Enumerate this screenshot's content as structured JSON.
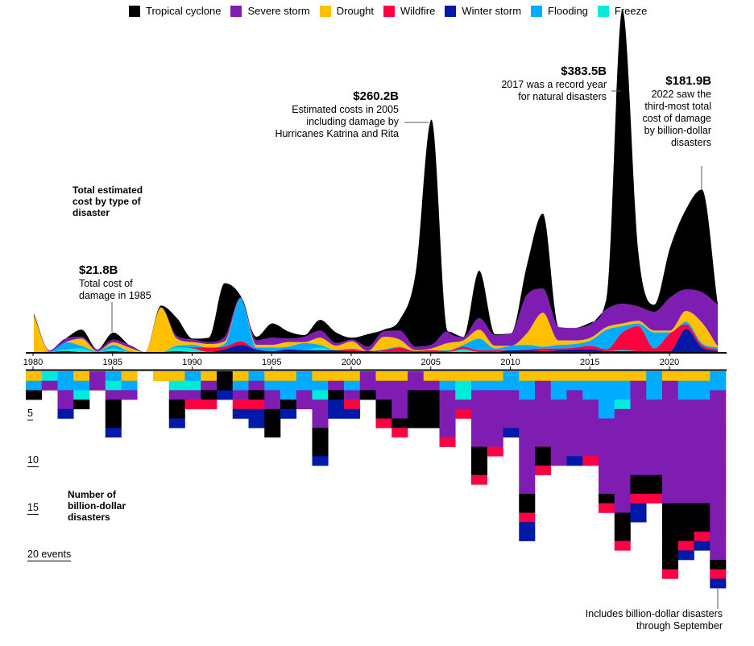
{
  "legend": [
    {
      "key": "tropical",
      "label": "Tropical cyclone",
      "color": "#000000"
    },
    {
      "key": "severe",
      "label": "Severe storm",
      "color": "#7F1CB2"
    },
    {
      "key": "drought",
      "label": "Drought",
      "color": "#FFC000"
    },
    {
      "key": "wildfire",
      "label": "Wildfire",
      "color": "#FF0040"
    },
    {
      "key": "winter",
      "label": "Winter storm",
      "color": "#0019A8"
    },
    {
      "key": "flooding",
      "label": "Flooding",
      "color": "#00ACFF"
    },
    {
      "key": "freeze",
      "label": "Freeze",
      "color": "#00EBDC"
    }
  ],
  "annotations": {
    "cost_label": "Total estimated cost by type of disaster",
    "count_label": "Number of billion-dollar disasters",
    "y1985_value": "$21.8B",
    "y1985_text": "Total cost of damage in 1985",
    "y2005_value": "$260.2B",
    "y2005_text": "Estimated costs in 2005 including damage by Hurricanes Katrina and Rita",
    "y2017_value": "$383.5B",
    "y2017_text": "2017 was a record year for natural disasters",
    "y2022_value": "$181.9B",
    "y2022_text": "2022 saw the third-most total cost of damage by billion-dollar disasters",
    "footnote": "Includes billion-dollar disasters through September"
  },
  "chart_data": [
    {
      "type": "area",
      "subtype": "streamgraph-stacked",
      "title": "Total estimated cost by type of disaster",
      "unit": "billion USD",
      "x": [
        1980,
        1981,
        1982,
        1983,
        1984,
        1985,
        1986,
        1987,
        1988,
        1989,
        1990,
        1991,
        1992,
        1993,
        1994,
        1995,
        1996,
        1997,
        1998,
        1999,
        2000,
        2001,
        2002,
        2003,
        2004,
        2005,
        2006,
        2007,
        2008,
        2009,
        2010,
        2011,
        2012,
        2013,
        2014,
        2015,
        2016,
        2017,
        2018,
        2019,
        2020,
        2021,
        2022,
        2023
      ],
      "x_ticks": [
        "1980",
        "1985",
        "1990",
        "1995",
        "2000",
        "2005",
        "2010",
        "2015",
        "2020"
      ],
      "stack_order_bottom_to_top": [
        "winter",
        "freeze",
        "wildfire",
        "flooding",
        "drought",
        "severe",
        "tropical"
      ],
      "series": {
        "tropical": [
          2,
          0,
          0,
          8,
          0,
          8,
          0,
          0,
          2,
          20,
          1,
          5,
          60,
          2,
          4,
          16,
          8,
          2,
          12,
          12,
          2,
          14,
          2,
          12,
          82,
          252.2,
          1,
          0,
          53,
          1,
          0,
          33,
          84,
          0,
          0,
          2,
          12,
          329.5,
          61,
          8,
          56,
          90,
          114.9,
          0
        ],
        "severe": [
          0,
          1,
          4,
          2,
          2,
          3,
          3,
          0,
          0,
          3,
          3,
          2,
          5,
          1,
          5,
          8,
          4,
          6,
          8,
          3,
          2,
          5,
          6,
          10,
          4,
          4,
          13,
          4,
          13,
          12,
          14,
          43,
          27,
          15,
          14,
          15,
          20,
          22,
          16,
          21,
          37,
          24,
          34,
          47
        ],
        "drought": [
          41,
          0,
          0,
          8,
          0,
          3,
          4,
          0,
          50,
          8,
          3,
          4,
          3,
          0,
          3,
          3,
          5,
          1,
          8,
          5,
          8,
          0,
          14,
          8,
          1,
          2,
          8,
          5,
          10,
          3,
          0,
          13,
          38,
          5,
          4,
          3,
          3,
          3,
          3,
          2,
          2,
          12,
          23,
          1
        ],
        "wildfire": [
          0,
          0,
          0,
          0,
          0,
          0,
          0,
          0,
          0,
          0,
          1,
          5,
          3,
          4,
          0,
          0,
          0,
          0,
          0,
          0,
          2,
          0,
          2,
          5,
          1,
          2,
          1,
          3,
          2,
          2,
          0,
          1,
          3,
          2,
          2,
          4,
          2,
          20,
          28,
          3,
          20,
          5,
          3,
          2
        ],
        "winter": [
          0,
          0,
          1,
          0,
          0,
          1,
          0,
          0,
          0,
          1,
          0,
          0,
          3,
          8,
          3,
          1,
          3,
          2,
          2,
          2,
          1,
          1,
          0,
          0,
          0,
          0,
          0,
          0,
          0,
          0,
          2,
          2,
          1,
          2,
          3,
          3,
          1,
          1,
          1,
          1,
          1,
          26,
          5,
          1
        ],
        "flooding": [
          0,
          1,
          8,
          3,
          1,
          4,
          1,
          0,
          0,
          2,
          3,
          0,
          3,
          48,
          2,
          4,
          3,
          8,
          3,
          0,
          1,
          0,
          1,
          1,
          0,
          0,
          1,
          2,
          13,
          2,
          5,
          5,
          2,
          4,
          4,
          6,
          22,
          7,
          3,
          18,
          1,
          3,
          2,
          2
        ],
        "freeze": [
          0,
          0,
          2,
          4,
          0,
          2.8,
          0,
          0,
          0,
          4,
          4,
          0,
          0,
          0,
          0,
          0,
          0,
          0,
          3,
          0,
          0,
          0,
          0,
          0,
          0,
          0,
          0,
          3,
          0,
          0,
          0,
          0,
          0,
          0,
          0,
          0,
          0,
          1,
          0,
          0,
          0,
          0,
          0,
          0
        ]
      },
      "labeled_totals": {
        "1985": 21.8,
        "2005": 260.2,
        "2017": 383.5,
        "2022": 181.9
      }
    },
    {
      "type": "bar",
      "subtype": "stacked-unit-grid",
      "title": "Number of billion-dollar disasters",
      "y_ticks": [
        "5",
        "10",
        "15",
        "20 events"
      ],
      "y_tick_values": [
        5,
        10,
        15,
        20
      ],
      "cell_order_top_to_bottom": [
        "drought",
        "flooding",
        "freeze",
        "severe",
        "tropical",
        "wildfire",
        "winter"
      ],
      "counts": {
        "1980": {
          "drought": 1,
          "flooding": 1,
          "tropical": 1
        },
        "1981": {
          "freeze": 1,
          "severe": 1
        },
        "1982": {
          "flooding": 2,
          "severe": 2,
          "winter": 1
        },
        "1983": {
          "drought": 1,
          "flooding": 1,
          "freeze": 1,
          "tropical": 1
        },
        "1984": {
          "severe": 2
        },
        "1985": {
          "flooding": 1,
          "freeze": 1,
          "severe": 1,
          "tropical": 3,
          "winter": 1
        },
        "1986": {
          "drought": 1,
          "flooding": 1,
          "severe": 1
        },
        "1987": {},
        "1988": {
          "drought": 1
        },
        "1989": {
          "drought": 1,
          "freeze": 1,
          "severe": 1,
          "tropical": 2,
          "winter": 1
        },
        "1990": {
          "flooding": 1,
          "freeze": 1,
          "severe": 1,
          "wildfire": 1
        },
        "1991": {
          "drought": 1,
          "severe": 1,
          "tropical": 1,
          "wildfire": 1
        },
        "1992": {
          "tropical": 2,
          "winter": 1
        },
        "1993": {
          "drought": 1,
          "flooding": 1,
          "severe": 1,
          "wildfire": 1,
          "winter": 1
        },
        "1994": {
          "flooding": 1,
          "severe": 1,
          "tropical": 1,
          "wildfire": 1,
          "winter": 2
        },
        "1995": {
          "drought": 1,
          "flooding": 1,
          "severe": 2,
          "tropical": 3
        },
        "1996": {
          "drought": 1,
          "flooding": 2,
          "tropical": 1,
          "winter": 1
        },
        "1997": {
          "flooding": 2,
          "severe": 2
        },
        "1998": {
          "drought": 1,
          "flooding": 1,
          "freeze": 1,
          "severe": 3,
          "tropical": 3,
          "winter": 1
        },
        "1999": {
          "drought": 1,
          "severe": 1,
          "tropical": 1,
          "winter": 2
        },
        "2000": {
          "drought": 1,
          "flooding": 1,
          "severe": 1,
          "wildfire": 1,
          "winter": 1
        },
        "2001": {
          "severe": 2,
          "tropical": 1
        },
        "2002": {
          "drought": 1,
          "severe": 2,
          "tropical": 2,
          "wildfire": 1
        },
        "2003": {
          "drought": 1,
          "severe": 4,
          "tropical": 1,
          "wildfire": 1
        },
        "2004": {
          "severe": 2,
          "tropical": 4
        },
        "2005": {
          "drought": 1,
          "severe": 1,
          "tropical": 4
        },
        "2006": {
          "drought": 1,
          "flooding": 1,
          "severe": 5,
          "wildfire": 1
        },
        "2007": {
          "drought": 1,
          "freeze": 2,
          "severe": 1,
          "wildfire": 1
        },
        "2008": {
          "drought": 1,
          "flooding": 1,
          "severe": 6,
          "tropical": 3,
          "wildfire": 1
        },
        "2009": {
          "drought": 1,
          "flooding": 1,
          "severe": 6,
          "wildfire": 1
        },
        "2010": {
          "flooding": 2,
          "severe": 4,
          "winter": 1
        },
        "2011": {
          "drought": 1,
          "flooding": 2,
          "severe": 10,
          "tropical": 2,
          "wildfire": 1,
          "winter": 2
        },
        "2012": {
          "drought": 1,
          "severe": 7,
          "tropical": 2,
          "wildfire": 1
        },
        "2013": {
          "drought": 1,
          "flooding": 2,
          "severe": 7
        },
        "2014": {
          "drought": 1,
          "flooding": 1,
          "severe": 7,
          "winter": 1
        },
        "2015": {
          "drought": 1,
          "flooding": 2,
          "severe": 6,
          "wildfire": 1
        },
        "2016": {
          "drought": 1,
          "flooding": 4,
          "severe": 8,
          "tropical": 1,
          "wildfire": 1
        },
        "2017": {
          "drought": 1,
          "flooding": 2,
          "freeze": 1,
          "severe": 11,
          "tropical": 3,
          "wildfire": 1
        },
        "2018": {
          "drought": 1,
          "severe": 10,
          "tropical": 2,
          "wildfire": 1,
          "winter": 2
        },
        "2019": {
          "flooding": 3,
          "severe": 8,
          "tropical": 2,
          "wildfire": 1
        },
        "2020": {
          "drought": 1,
          "severe": 13,
          "tropical": 7,
          "wildfire": 1
        },
        "2021": {
          "drought": 1,
          "flooding": 2,
          "severe": 11,
          "tropical": 4,
          "wildfire": 1,
          "winter": 1
        },
        "2022": {
          "drought": 1,
          "flooding": 2,
          "severe": 11,
          "tropical": 3,
          "wildfire": 1,
          "winter": 1
        },
        "2023": {
          "flooding": 2,
          "severe": 18,
          "tropical": 1,
          "winter": 1,
          "wildfire": 1
        }
      }
    }
  ]
}
